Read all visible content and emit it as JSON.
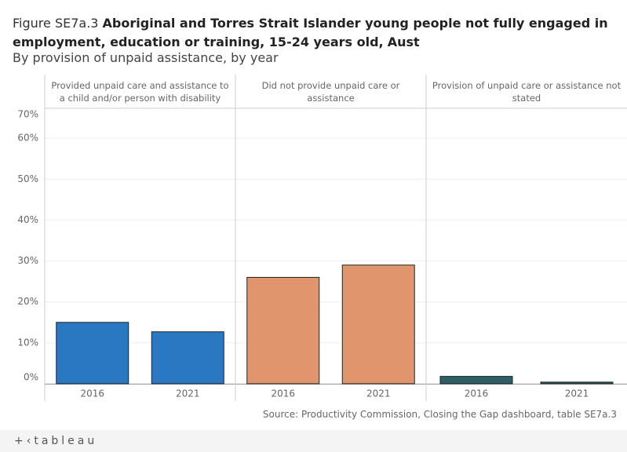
{
  "chart_data": {
    "type": "bar",
    "title_prefix": "Figure SE7a.3",
    "title": "Aboriginal and Torres Strait Islander young people not fully engaged in employment, education or training, 15-24 years old,",
    "region": "Aust",
    "subtitle": "By provision of unpaid assistance, by year",
    "facets": [
      {
        "name": "Provided unpaid care and assistance to a child and/or person with disability",
        "color": "#2b78c2",
        "categories": [
          "2016",
          "2021"
        ],
        "values": [
          15.0,
          12.7
        ]
      },
      {
        "name": "Did not provide unpaid care or assistance",
        "color": "#e0956c",
        "categories": [
          "2016",
          "2021"
        ],
        "values": [
          26.0,
          29.0
        ]
      },
      {
        "name": "Provision of unpaid care or assistance not stated",
        "color": "#2d5f66",
        "categories": [
          "2016",
          "2021"
        ],
        "values": [
          1.8,
          0.4
        ]
      }
    ],
    "ylim": [
      0,
      70
    ],
    "yticks": [
      {
        "value": 0,
        "label": "0%"
      },
      {
        "value": 10,
        "label": "10%"
      },
      {
        "value": 20,
        "label": "20%"
      },
      {
        "value": 30,
        "label": "30%"
      },
      {
        "value": 40,
        "label": "40%"
      },
      {
        "value": 50,
        "label": "50%"
      },
      {
        "value": 60,
        "label": "60%"
      },
      {
        "value": 70,
        "label": "70%"
      }
    ],
    "grid": true,
    "source": "Source: Productivity Commission, Closing the Gap dashboard, table SE7a.3",
    "brand": "+‹tableau"
  }
}
